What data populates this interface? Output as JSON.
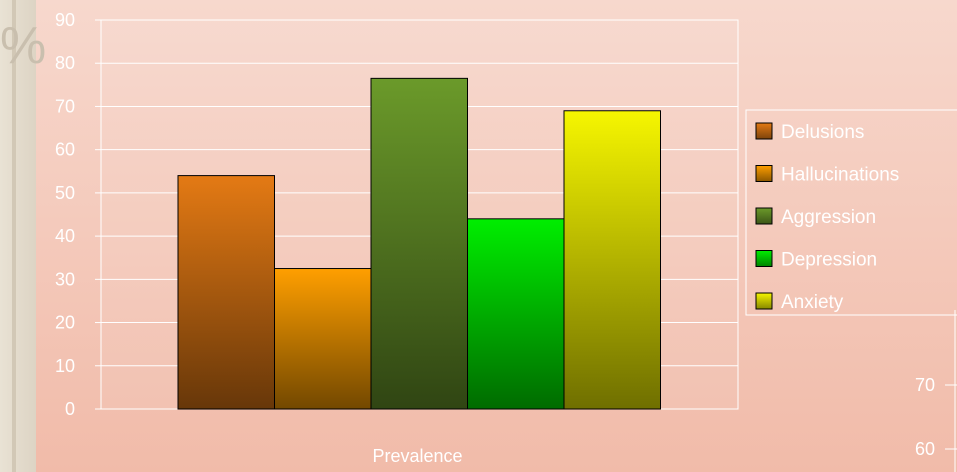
{
  "background_glyph": "%",
  "chart_data": {
    "type": "bar",
    "xlabel": "Prevalence",
    "categories": [
      "Prevalence"
    ],
    "ylim": [
      0,
      90
    ],
    "yticks": [
      0,
      10,
      20,
      30,
      40,
      50,
      60,
      70,
      80,
      90
    ],
    "grid": true,
    "legend_position": "right",
    "series": [
      {
        "name": "Delusions",
        "values": [
          54
        ],
        "color": "#e47a14"
      },
      {
        "name": "Hallucinations",
        "values": [
          32.5
        ],
        "color": "#ff9f00"
      },
      {
        "name": "Aggression",
        "values": [
          76.5
        ],
        "color": "#6b9a2a"
      },
      {
        "name": "Depression",
        "values": [
          44
        ],
        "color": "#00ee00"
      },
      {
        "name": "Anxiety",
        "values": [
          69
        ],
        "color": "#f6f600"
      }
    ],
    "second_axis_ticks": [
      70,
      60
    ]
  }
}
